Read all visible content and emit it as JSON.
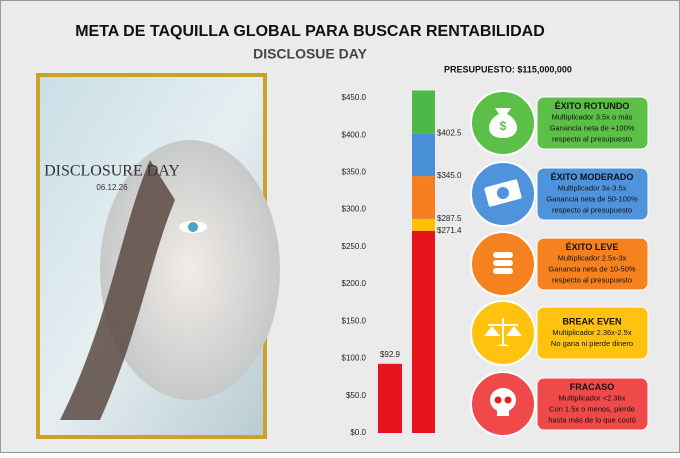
{
  "chart_data": {
    "type": "bar",
    "title": "META DE TAQUILLA GLOBAL PARA BUSCAR RENTABILIDAD",
    "subtitle": "DISCLOSUE DAY",
    "budget_label": "PRESUPUESTO:  $115,000,000",
    "budget_bar": {
      "value": 92.9,
      "value_label": "$92.9",
      "color": "#e8141c"
    },
    "goal_stack": {
      "values": [
        271.4,
        16.1,
        57.5,
        57.5,
        57.5
      ],
      "colors": [
        "#e8141c",
        "#ffc000",
        "#f57f20",
        "#4a90d9",
        "#4cb848"
      ]
    },
    "thresholds": [
      {
        "value": 271.4,
        "label": "$271.4"
      },
      {
        "value": 287.5,
        "label": "$287.5"
      },
      {
        "value": 345.0,
        "label": "$345.0"
      },
      {
        "value": 402.5,
        "label": "$402.5"
      }
    ],
    "ylim": [
      0,
      460
    ],
    "yticks": [
      {
        "value": 0,
        "label": "$0.0"
      },
      {
        "value": 50,
        "label": "$50.0"
      },
      {
        "value": 100,
        "label": "$100.0"
      },
      {
        "value": 150,
        "label": "$150.0"
      },
      {
        "value": 200,
        "label": "$200.0"
      },
      {
        "value": 250,
        "label": "$250.0"
      },
      {
        "value": 300,
        "label": "$300.0"
      },
      {
        "value": 350,
        "label": "$350.0"
      },
      {
        "value": 400,
        "label": "$400.0"
      },
      {
        "value": 450,
        "label": "$450.0"
      }
    ]
  },
  "poster": {
    "title": "DISCLOSURE DAY",
    "date": "06.12.26"
  },
  "tiers": [
    {
      "title": "ÉXITO ROTUNDO",
      "color": "#5cbf48",
      "lines": [
        "Multiplicador 3.5x o más",
        "Ganancia neta de +100%",
        "respecto al presupuesto"
      ]
    },
    {
      "title": "ÉXITO MODERADO",
      "color": "#4f93dd",
      "lines": [
        "Multiplicador 3x-3.5x",
        "Ganancia neta de 50-100%",
        "respecto al presupuesto"
      ]
    },
    {
      "title": "ÉXITO LEVE",
      "color": "#f5821f",
      "lines": [
        "Multiplicador 2.5x-3x",
        "Ganancia neta de 10-50%",
        "respecto al presupuesto"
      ]
    },
    {
      "title": "BREAK EVEN",
      "color": "#ffc20e",
      "lines": [
        "Multiplicador 2.36x-2.5x",
        "No gana ni pierde dinero"
      ]
    },
    {
      "title": "FRACASO",
      "color": "#f0494a",
      "lines": [
        "Multiplicador <2.36x",
        "Con 1.5x o menos, pierde",
        "hasta más de lo que costó"
      ]
    }
  ]
}
